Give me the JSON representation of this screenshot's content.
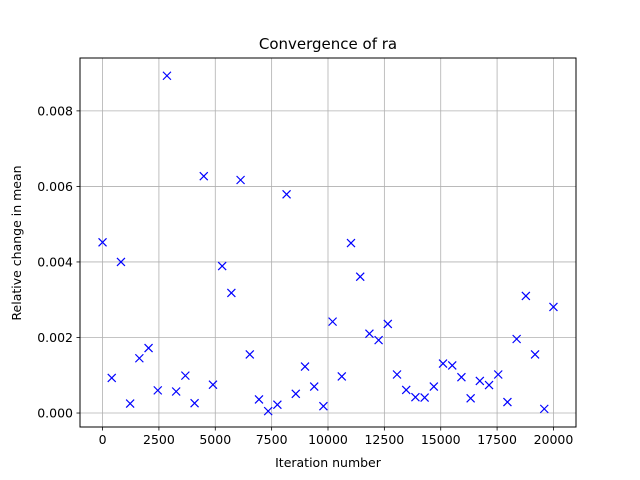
{
  "chart_data": {
    "type": "scatter",
    "title": "Convergence of ra",
    "xlabel": "Iteration number",
    "ylabel": "Relative change in mean",
    "xlim": [
      -1000,
      21000
    ],
    "ylim": [
      -0.00037,
      0.0094
    ],
    "xticks": [
      0,
      2500,
      5000,
      7500,
      10000,
      12500,
      15000,
      17500,
      20000
    ],
    "xtick_labels": [
      "0",
      "2500",
      "5000",
      "7500",
      "10000",
      "12500",
      "15000",
      "17500",
      "20000"
    ],
    "yticks": [
      0.0,
      0.002,
      0.004,
      0.006,
      0.008
    ],
    "ytick_labels": [
      "0.000",
      "0.002",
      "0.004",
      "0.006",
      "0.008"
    ],
    "grid": true,
    "marker": "x",
    "color": "#0000ff",
    "series": [
      {
        "x": [
          0,
          408,
          816,
          1224,
          1633,
          2041,
          2449,
          2857,
          3265,
          3673,
          4082,
          4490,
          4898,
          5306,
          5714,
          6122,
          6531,
          6939,
          7347,
          7755,
          8163,
          8571,
          8980,
          9388,
          9796,
          10204,
          10612,
          11020,
          11429,
          11837,
          12245,
          12653,
          13061,
          13469,
          13878,
          14286,
          14694,
          15102,
          15510,
          15918,
          16327,
          16735,
          17143,
          17551,
          17959,
          18367,
          18776,
          19184,
          19592,
          20000
        ],
        "y": [
          0.00452,
          0.00093,
          0.004,
          0.00025,
          0.00145,
          0.00172,
          0.0006,
          0.00893,
          0.00057,
          0.00099,
          0.00026,
          0.00627,
          0.00075,
          0.00389,
          0.00318,
          0.00617,
          0.00155,
          0.00036,
          5e-05,
          0.00022,
          0.00579,
          0.00051,
          0.00123,
          0.0007,
          0.00018,
          0.00242,
          0.00097,
          0.0045,
          0.00361,
          0.0021,
          0.00193,
          0.00236,
          0.00102,
          0.00061,
          0.00042,
          0.00041,
          0.0007,
          0.00131,
          0.00126,
          0.00095,
          0.00039,
          0.00085,
          0.00074,
          0.00102,
          0.00029,
          0.00196,
          0.0031,
          0.00155,
          0.00011,
          0.00281
        ]
      }
    ]
  }
}
